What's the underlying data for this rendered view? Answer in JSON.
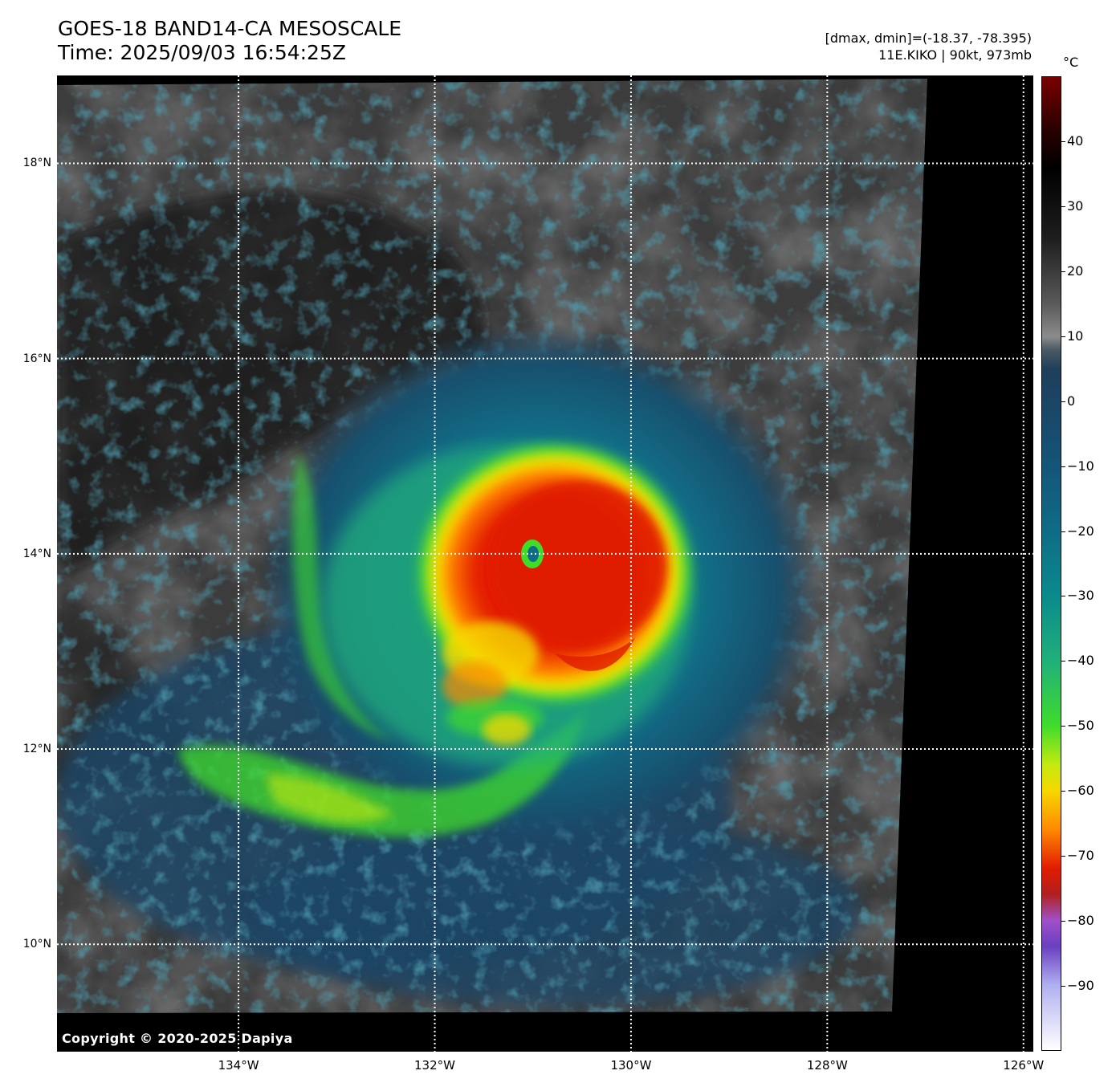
{
  "header": {
    "title_line1": "GOES-18 BAND14-CA MESOSCALE",
    "title_line2": "Time: 2025/09/03 16:54:25Z",
    "info_line1": "[dmax, dmin]=(-18.37, -78.395)",
    "info_line2": "11E.KIKO | 90kt, 973mb"
  },
  "map": {
    "lat_labels": [
      {
        "lat": 18,
        "text": "18°N"
      },
      {
        "lat": 16,
        "text": "16°N"
      },
      {
        "lat": 14,
        "text": "14°N"
      },
      {
        "lat": 12,
        "text": "12°N"
      },
      {
        "lat": 10,
        "text": "10°N"
      }
    ],
    "lon_labels": [
      {
        "lon": -134,
        "text": "134°W"
      },
      {
        "lon": -132,
        "text": "132°W"
      },
      {
        "lon": -130,
        "text": "130°W"
      },
      {
        "lon": -128,
        "text": "128°W"
      },
      {
        "lon": -126,
        "text": "126°W"
      }
    ],
    "extent": {
      "lon_min": -135.85,
      "lon_max": -125.9,
      "lat_min": 8.9,
      "lat_max": 18.9
    },
    "storm_center": {
      "lat": 13.98,
      "lon": -131.0
    },
    "gridline_style": "dotted white"
  },
  "colorbar": {
    "unit": "°C",
    "range": [
      -100,
      50
    ],
    "ticks": [
      40,
      30,
      20,
      10,
      0,
      -10,
      -20,
      -30,
      -40,
      -50,
      -60,
      -70,
      -80,
      -90
    ],
    "tick_labels": [
      "40",
      "30",
      "20",
      "10",
      "0",
      "−10",
      "−20",
      "−30",
      "−40",
      "−50",
      "−60",
      "−70",
      "−80",
      "−90"
    ],
    "stops": [
      {
        "t": 50,
        "color": "#7a0000"
      },
      {
        "t": 42,
        "color": "#2a0000"
      },
      {
        "t": 36,
        "color": "#000000"
      },
      {
        "t": 25,
        "color": "#1e1e1e"
      },
      {
        "t": 15,
        "color": "#5a5a5a"
      },
      {
        "t": 10,
        "color": "#8c8c8c"
      },
      {
        "t": 8,
        "color": "#4a5a66"
      },
      {
        "t": 5,
        "color": "#1f3f5a"
      },
      {
        "t": 0,
        "color": "#1b4565"
      },
      {
        "t": -10,
        "color": "#145578"
      },
      {
        "t": -20,
        "color": "#0f6c86"
      },
      {
        "t": -30,
        "color": "#0a8a8c"
      },
      {
        "t": -40,
        "color": "#20b07a"
      },
      {
        "t": -50,
        "color": "#3fdc2a"
      },
      {
        "t": -56,
        "color": "#c4ea10"
      },
      {
        "t": -60,
        "color": "#f5d800"
      },
      {
        "t": -66,
        "color": "#ff8a00"
      },
      {
        "t": -72,
        "color": "#e11b00"
      },
      {
        "t": -76,
        "color": "#b0201f"
      },
      {
        "t": -80,
        "color": "#a050c8"
      },
      {
        "t": -84,
        "color": "#6a3fc0"
      },
      {
        "t": -90,
        "color": "#b0b0f0"
      },
      {
        "t": -100,
        "color": "#ffffff"
      }
    ]
  },
  "footer": {
    "copyright": "Copyright © 2020-2025 Dapiya"
  }
}
